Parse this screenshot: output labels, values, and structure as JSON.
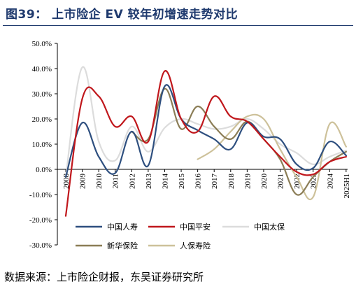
{
  "title": "图39：  上市险企 EV 较年初增速走势对比",
  "source": "数据来源：上市险企财报，东吴证券研究所",
  "chart_data": {
    "type": "line",
    "x": [
      "2008",
      "2009",
      "2010",
      "2011",
      "2012",
      "2013",
      "2014",
      "2015",
      "2016",
      "2017",
      "2018",
      "2019",
      "2020",
      "2021",
      "2022",
      "2023",
      "2024",
      "2025H1"
    ],
    "y_ticks": [
      "50.0%",
      "40.0%",
      "30.0%",
      "20.0%",
      "10.0%",
      "0.0%",
      "-10.0%",
      "-20.0%",
      "-30.0%"
    ],
    "ylim": [
      -30,
      50
    ],
    "y_unit": "%",
    "grid": false,
    "legend_position": "bottom",
    "series": [
      {
        "name": "中国人寿",
        "color": "#2e4f7f",
        "values": [
          -3,
          18.5,
          5,
          -1.5,
          15,
          1.5,
          33,
          20,
          15.5,
          12,
          8,
          18.5,
          13,
          12,
          2,
          0.5,
          11,
          5.5
        ]
      },
      {
        "name": "中国平安",
        "color": "#c0171c",
        "values": [
          -18.5,
          28,
          29,
          17,
          21,
          11,
          39,
          20,
          15,
          29,
          21,
          19,
          12,
          5,
          -1,
          -2,
          3,
          5
        ]
      },
      {
        "name": "中国太保",
        "color": "#dcdcdc",
        "values": [
          -3,
          40.5,
          11,
          3.5,
          17,
          7,
          16.5,
          20,
          18,
          16,
          17,
          20,
          16,
          10,
          6.5,
          2,
          5,
          7.5
        ]
      },
      {
        "name": "新华保险",
        "color": "#8b7d56",
        "values": [
          null,
          null,
          null,
          null,
          15,
          12,
          32,
          16,
          25,
          17,
          12,
          19,
          12,
          4,
          -10,
          -3,
          3,
          7
        ]
      },
      {
        "name": "人保寿险",
        "color": "#cdc19a",
        "values": [
          null,
          null,
          null,
          null,
          null,
          null,
          null,
          null,
          4,
          8,
          15,
          21,
          20,
          8,
          -3,
          -11,
          18,
          9
        ]
      }
    ]
  }
}
